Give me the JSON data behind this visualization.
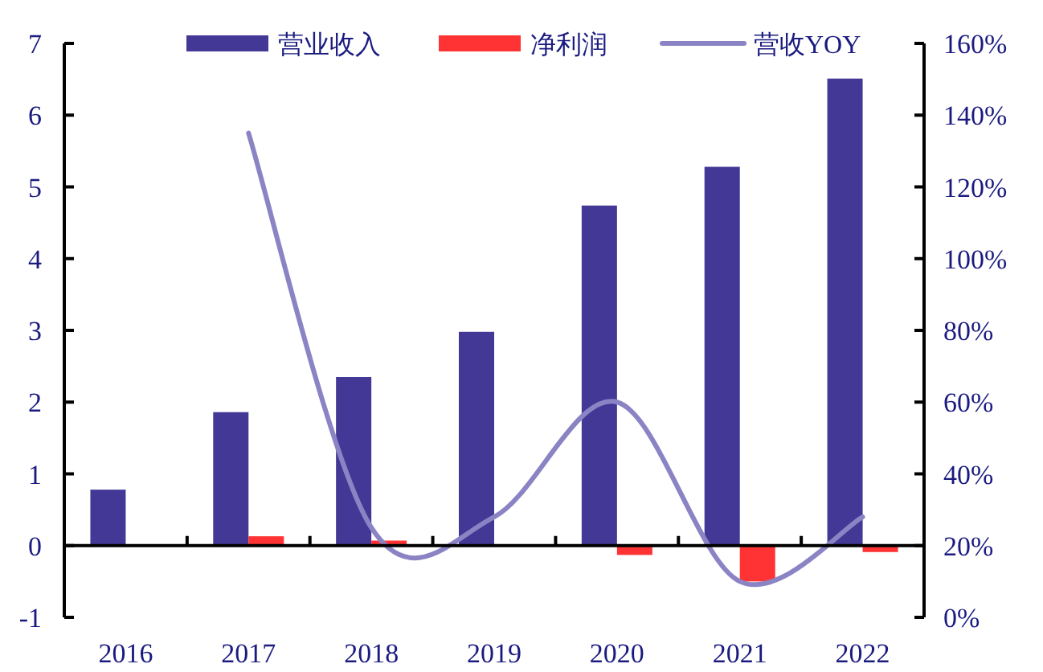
{
  "chart_data": {
    "type": "bar",
    "categories": [
      "2016",
      "2017",
      "2018",
      "2019",
      "2020",
      "2021",
      "2022"
    ],
    "series": [
      {
        "name": "营业收入",
        "color": "#433895",
        "values": [
          0.78,
          1.86,
          2.35,
          2.98,
          4.74,
          5.28,
          6.51
        ]
      },
      {
        "name": "净利润",
        "color": "#ff3333",
        "values": [
          null,
          0.13,
          0.07,
          null,
          -0.13,
          -0.5,
          -0.09
        ]
      },
      {
        "name": "营收YOY",
        "type": "line",
        "axis": "y2",
        "color": "#8b84c4",
        "values": [
          null,
          135,
          25,
          28,
          60,
          10,
          28
        ]
      }
    ],
    "ylim": [
      -1,
      7
    ],
    "yticks": [
      -1,
      0,
      1,
      2,
      3,
      4,
      5,
      6,
      7
    ],
    "y2lim": [
      0,
      160
    ],
    "y2ticks": [
      {
        "value": 0,
        "label": "0%"
      },
      {
        "value": 20,
        "label": "20%"
      },
      {
        "value": 40,
        "label": "40%"
      },
      {
        "value": 60,
        "label": "60%"
      },
      {
        "value": 80,
        "label": "80%"
      },
      {
        "value": 100,
        "label": "100%"
      },
      {
        "value": 120,
        "label": "120%"
      },
      {
        "value": 140,
        "label": "140%"
      },
      {
        "value": 160,
        "label": "160%"
      }
    ],
    "legend": "top"
  }
}
